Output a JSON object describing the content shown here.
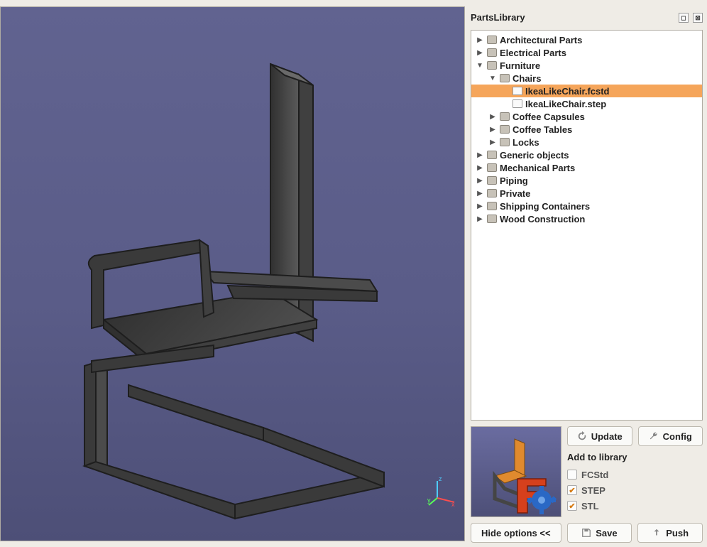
{
  "panel": {
    "title": "PartsLibrary",
    "undock_tooltip": "Undock",
    "close_tooltip": "Close"
  },
  "tree": {
    "nodes": [
      {
        "depth": 0,
        "expanded": false,
        "type": "folder",
        "label": "Architectural Parts",
        "selected": false
      },
      {
        "depth": 0,
        "expanded": false,
        "type": "folder",
        "label": "Electrical Parts",
        "selected": false
      },
      {
        "depth": 0,
        "expanded": true,
        "type": "folder",
        "label": "Furniture",
        "selected": false
      },
      {
        "depth": 1,
        "expanded": true,
        "type": "folder",
        "label": "Chairs",
        "selected": false
      },
      {
        "depth": 2,
        "expanded": null,
        "type": "file",
        "label": "IkeaLikeChair.fcstd",
        "selected": true
      },
      {
        "depth": 2,
        "expanded": null,
        "type": "file",
        "label": "IkeaLikeChair.step",
        "selected": false
      },
      {
        "depth": 1,
        "expanded": false,
        "type": "folder",
        "label": "Coffee Capsules",
        "selected": false
      },
      {
        "depth": 1,
        "expanded": false,
        "type": "folder",
        "label": "Coffee Tables",
        "selected": false
      },
      {
        "depth": 1,
        "expanded": false,
        "type": "folder",
        "label": "Locks",
        "selected": false
      },
      {
        "depth": 0,
        "expanded": false,
        "type": "folder",
        "label": "Generic objects",
        "selected": false
      },
      {
        "depth": 0,
        "expanded": false,
        "type": "folder",
        "label": "Mechanical Parts",
        "selected": false
      },
      {
        "depth": 0,
        "expanded": false,
        "type": "folder",
        "label": "Piping",
        "selected": false
      },
      {
        "depth": 0,
        "expanded": false,
        "type": "folder",
        "label": "Private",
        "selected": false
      },
      {
        "depth": 0,
        "expanded": false,
        "type": "folder",
        "label": "Shipping Containers",
        "selected": false
      },
      {
        "depth": 0,
        "expanded": false,
        "type": "folder",
        "label": "Wood Construction",
        "selected": false
      }
    ]
  },
  "buttons": {
    "update": "Update",
    "config": "Config",
    "hide_options": "Hide options <<",
    "save": "Save",
    "push": "Push"
  },
  "add_section": {
    "title": "Add to library",
    "options": [
      {
        "label": "FCStd",
        "checked": false
      },
      {
        "label": "STEP",
        "checked": true
      },
      {
        "label": "STL",
        "checked": true
      }
    ]
  },
  "axis_labels": {
    "x": "x",
    "y": "y",
    "z": "z"
  },
  "viewport": {
    "bg_top": "#616390",
    "bg_bottom": "#4d4f77",
    "model_fill": "#3d3d3d",
    "model_fill_light": "#585858",
    "model_edge": "#1e1e1e"
  },
  "thumb": {
    "chair_color": "#e08a2e",
    "frame_color": "#454545",
    "f_color": "#d6401c",
    "gear_color": "#2a68c5"
  },
  "selection_color": "#f5a55a"
}
